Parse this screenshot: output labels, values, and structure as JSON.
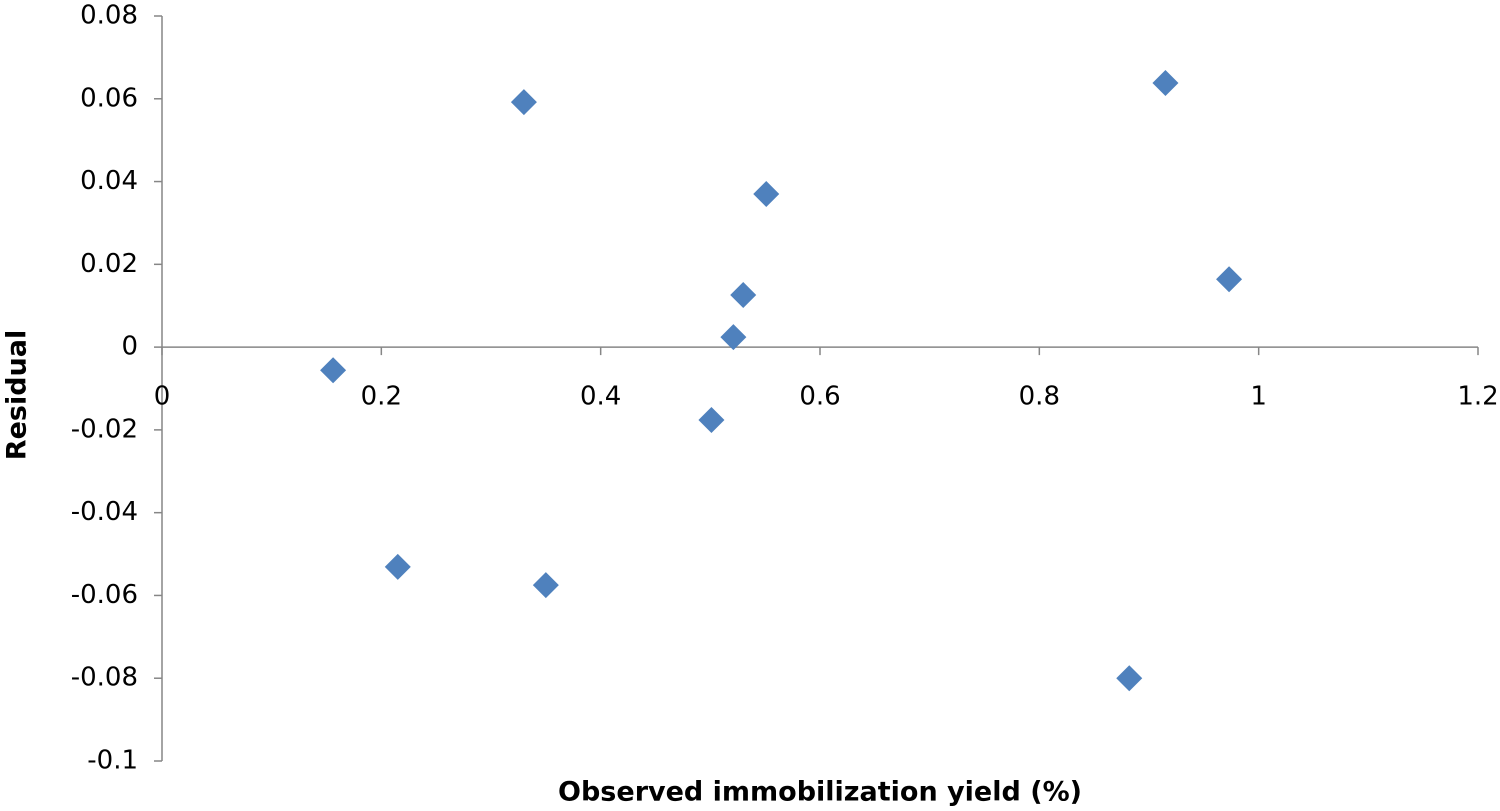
{
  "chart_data": {
    "type": "scatter",
    "x_label": "Observed immobilization yield (%)",
    "y_label": "Residual",
    "series": [
      {
        "name": "Residual",
        "color": "#4f81bd",
        "x": [
          0.156,
          0.33,
          0.215,
          0.35,
          0.501,
          0.521,
          0.53,
          0.551,
          0.882,
          0.915,
          0.973
        ],
        "values": [
          -0.0056,
          0.0592,
          -0.0531,
          -0.0575,
          -0.0176,
          0.0024,
          0.0126,
          0.037,
          -0.08,
          0.0638,
          0.0164
        ]
      }
    ],
    "xlim": [
      0,
      1.2
    ],
    "xticks": [
      0,
      0.2,
      0.4,
      0.6,
      0.8,
      1,
      1.2
    ],
    "ylim": [
      -0.1,
      0.08
    ],
    "yticks": [
      -0.1,
      -0.08,
      -0.06,
      -0.04,
      -0.02,
      0,
      0.02,
      0.04,
      0.06,
      0.08
    ],
    "grid": false
  }
}
